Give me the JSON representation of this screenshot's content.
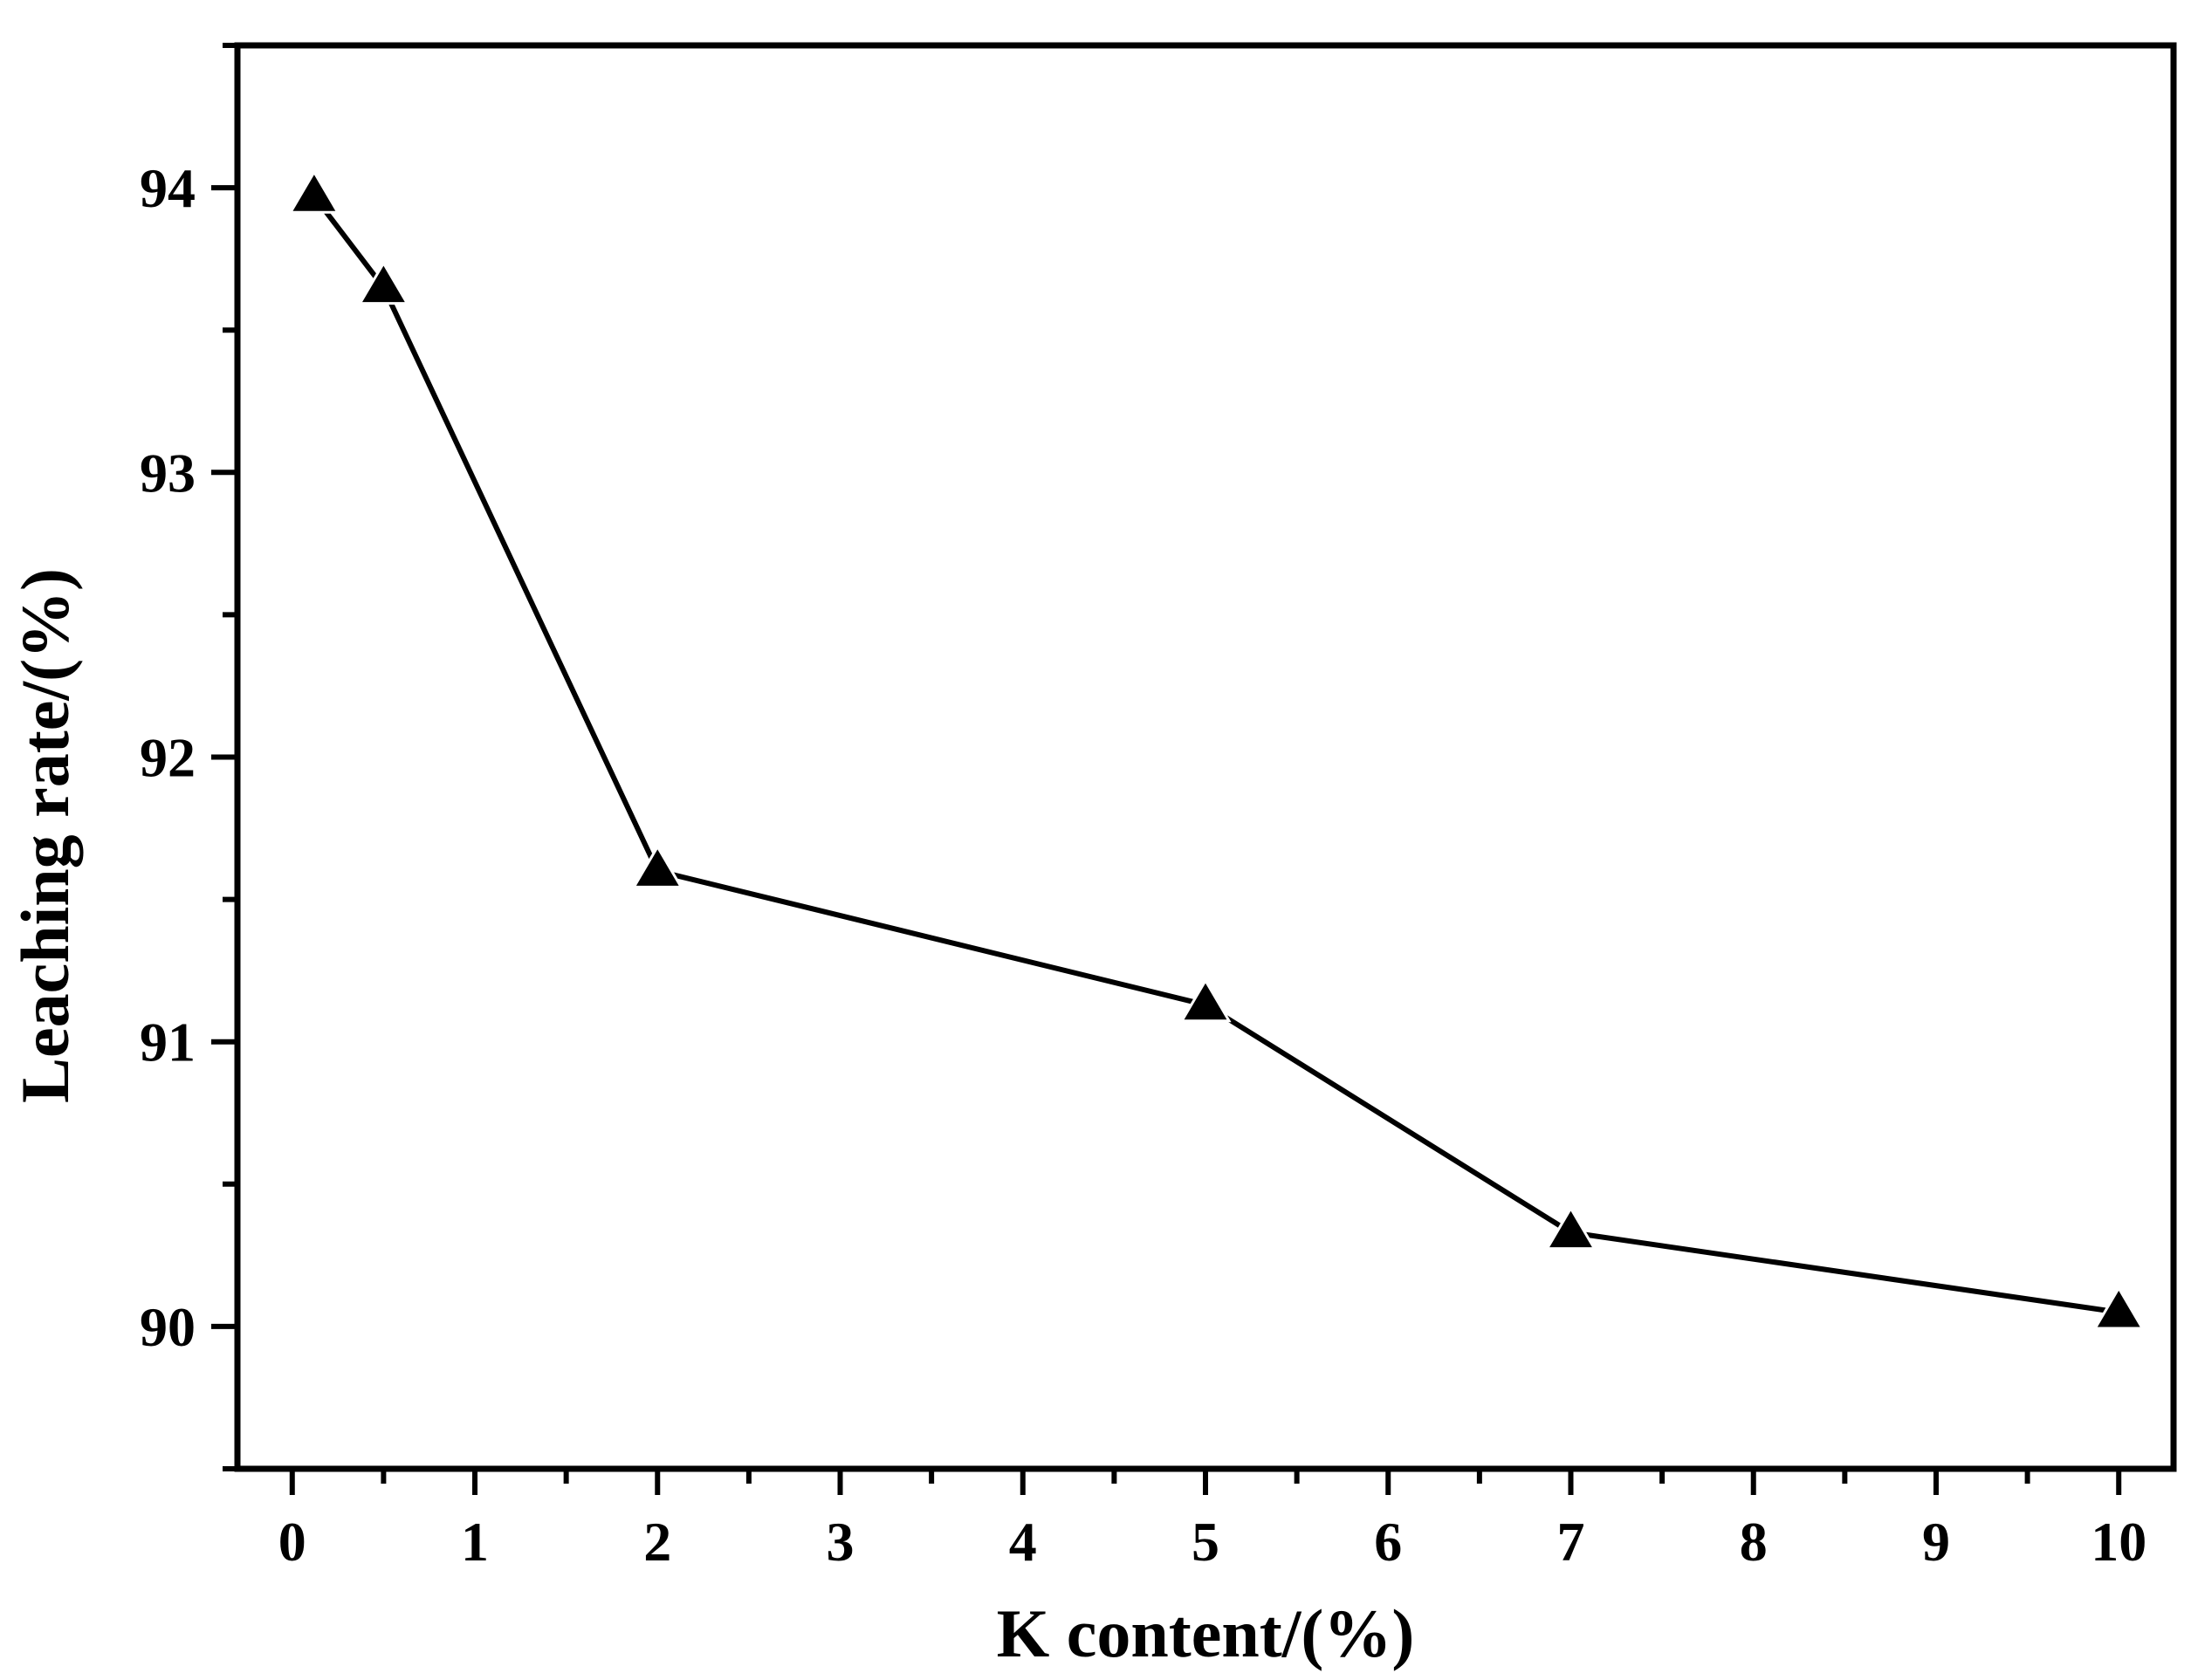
{
  "chart_data": {
    "type": "line",
    "title": "",
    "xlabel": "K content/(%)",
    "ylabel": "Leaching rate/(%)",
    "xlim": [
      -0.3,
      10.3
    ],
    "ylim": [
      89.5,
      94.5
    ],
    "x_ticks": [
      0,
      1,
      2,
      3,
      4,
      5,
      6,
      7,
      8,
      9,
      10
    ],
    "y_ticks": [
      90,
      91,
      92,
      93,
      94
    ],
    "series": [
      {
        "marker": "triangle",
        "color": "#000000",
        "x": [
          0.12,
          0.5,
          2,
          5,
          7,
          10
        ],
        "y": [
          93.97,
          93.65,
          91.6,
          91.13,
          90.33,
          90.05
        ]
      }
    ],
    "grid": false,
    "legend": "none"
  }
}
